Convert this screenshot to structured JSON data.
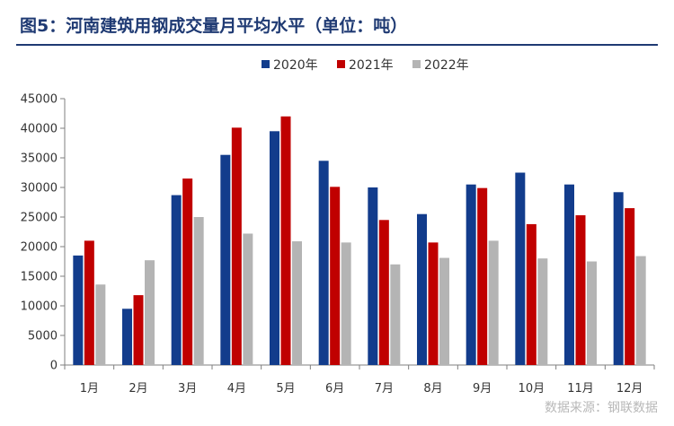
{
  "title": "图5：河南建筑用钢成交量月平均水平（单位：吨）",
  "source": "数据来源：钢联数据",
  "colors": {
    "title": "#1f3a73",
    "series": [
      "#123c8c",
      "#c00000",
      "#b4b4b4"
    ]
  },
  "chart_data": {
    "type": "bar",
    "title": "图5：河南建筑用钢成交量月平均水平（单位：吨）",
    "xlabel": "",
    "ylabel": "",
    "categories": [
      "1月",
      "2月",
      "3月",
      "4月",
      "5月",
      "6月",
      "7月",
      "8月",
      "9月",
      "10月",
      "11月",
      "12月"
    ],
    "series": [
      {
        "name": "2020年",
        "values": [
          18500,
          9500,
          28700,
          35500,
          39500,
          34500,
          30000,
          25500,
          30500,
          32500,
          30500,
          29200
        ]
      },
      {
        "name": "2021年",
        "values": [
          21000,
          11800,
          31500,
          40100,
          42000,
          30100,
          24500,
          20700,
          29900,
          23800,
          25300,
          26500
        ]
      },
      {
        "name": "2022年",
        "values": [
          13600,
          17700,
          25000,
          22200,
          20900,
          20700,
          17000,
          18100,
          21000,
          18000,
          17500,
          18400
        ]
      }
    ],
    "ylim": [
      0,
      45000
    ],
    "yticks": [
      0,
      5000,
      10000,
      15000,
      20000,
      25000,
      30000,
      35000,
      40000,
      45000
    ],
    "grid": false,
    "legend": "top-center"
  }
}
